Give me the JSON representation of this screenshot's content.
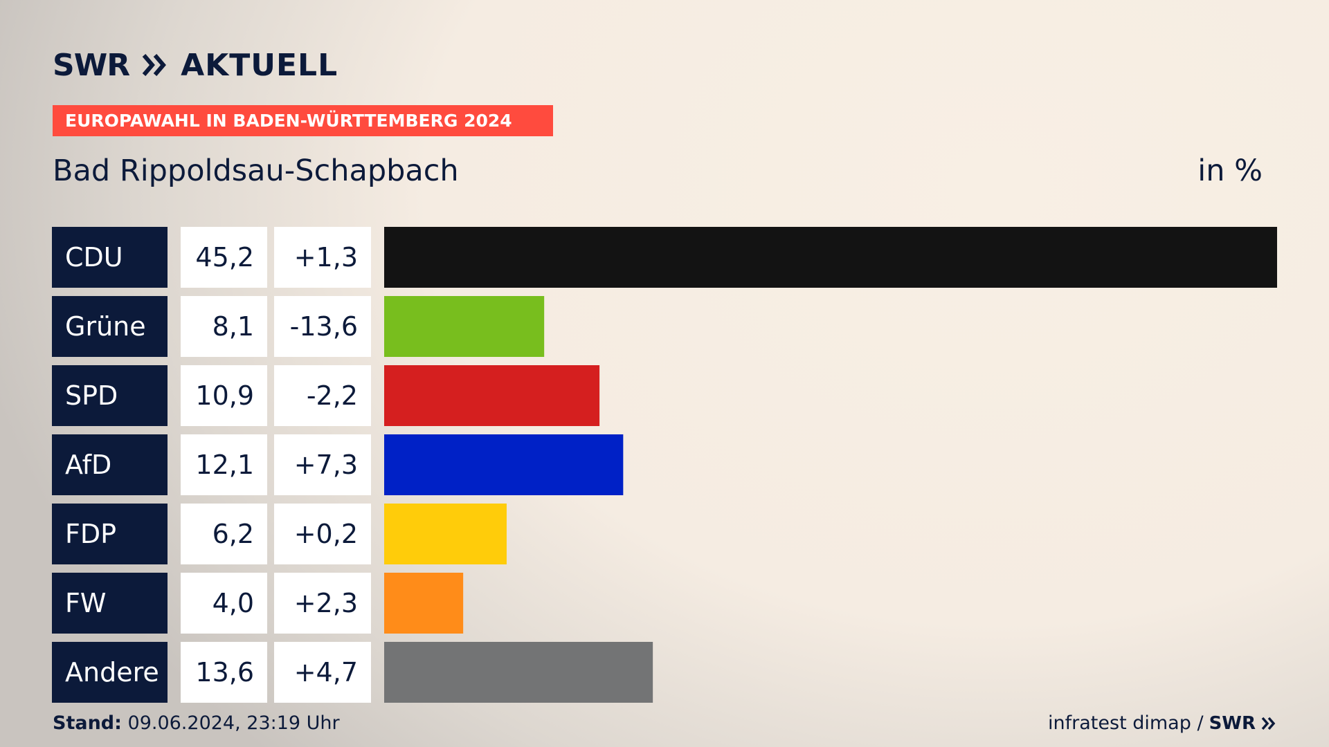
{
  "header": {
    "logo_swr": "SWR",
    "logo_aktuell": "AKTUELL",
    "kicker": "EUROPAWAHL IN BADEN-WÜRTTEMBERG 2024",
    "place": "Bad Rippoldsau-Schapbach",
    "unit": "in %"
  },
  "footer": {
    "stand_label": "Stand:",
    "stand_value": "09.06.2024, 23:19 Uhr",
    "source": "infratest dimap /",
    "source_swr": "SWR"
  },
  "colors": {
    "label_bg": "#0c1a3a",
    "accent": "#ff4b3e"
  },
  "chart_data": {
    "type": "bar",
    "orientation": "horizontal",
    "categories": [
      "CDU",
      "Grüne",
      "SPD",
      "AfD",
      "FDP",
      "FW",
      "Andere"
    ],
    "values": [
      45.2,
      8.1,
      10.9,
      12.1,
      6.2,
      4.0,
      13.6
    ],
    "value_labels": [
      "45,2",
      "8,1",
      "10,9",
      "12,1",
      "6,2",
      "4,0",
      "13,6"
    ],
    "change_labels": [
      "+1,3",
      "-13,6",
      "-2,2",
      "+7,3",
      "+0,2",
      "+2,3",
      "+4,7"
    ],
    "changes": [
      1.3,
      -13.6,
      -2.2,
      7.3,
      0.2,
      2.3,
      4.7
    ],
    "bar_colors": [
      "#131313",
      "#78be1e",
      "#d51f1f",
      "#0021c6",
      "#ffcc0a",
      "#ff8c19",
      "#737475"
    ],
    "xlim": [
      0,
      45.2
    ]
  }
}
